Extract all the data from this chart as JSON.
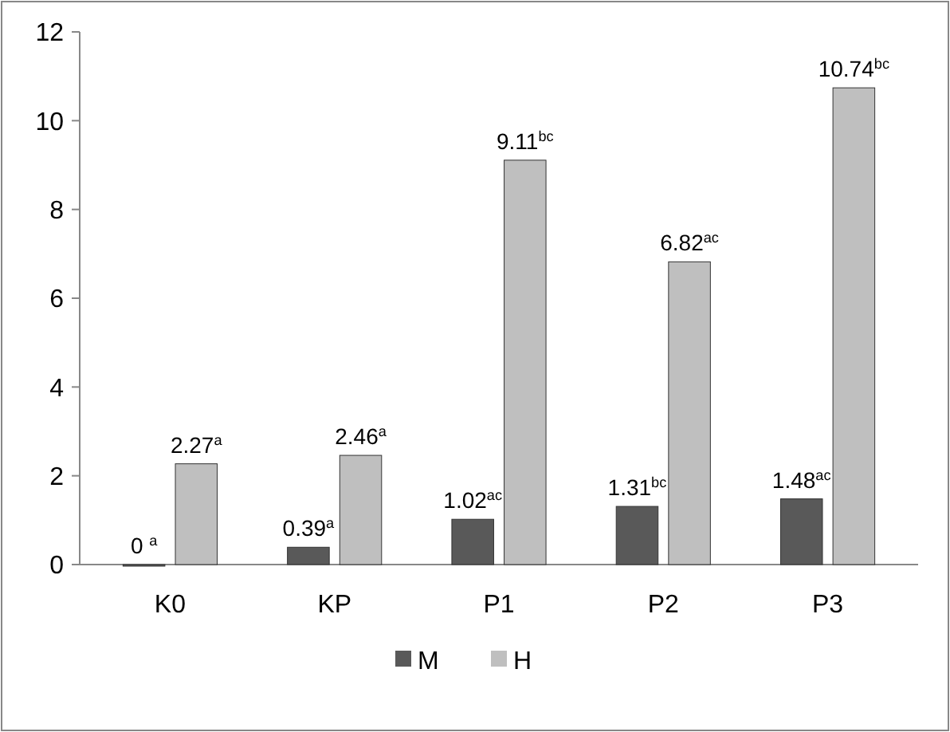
{
  "chart_data": {
    "type": "bar",
    "categories": [
      "K0",
      "KP",
      "P1",
      "P2",
      "P3"
    ],
    "series": [
      {
        "name": "M",
        "color": "#595959",
        "values": [
          0,
          0.39,
          1.02,
          1.31,
          1.48
        ],
        "value_labels": [
          "0 $^{a}$",
          "0.39$^{a}$",
          "1.02$^{ac}$",
          "1.31$^{bc}$",
          "1.48$^{ac}$"
        ]
      },
      {
        "name": "H",
        "color": "#bfbfbf",
        "values": [
          2.27,
          2.46,
          9.11,
          6.82,
          10.74
        ],
        "value_labels": [
          "2.27$^{a}$",
          "2.46$^{a}$",
          "9.11$^{bc}$",
          "6.82$^{ac}$",
          "10.74$^{bc}$"
        ]
      }
    ],
    "ylim": [
      0,
      12
    ],
    "yticks": [
      0,
      2,
      4,
      6,
      8,
      10,
      12
    ],
    "legend": "bottom"
  }
}
